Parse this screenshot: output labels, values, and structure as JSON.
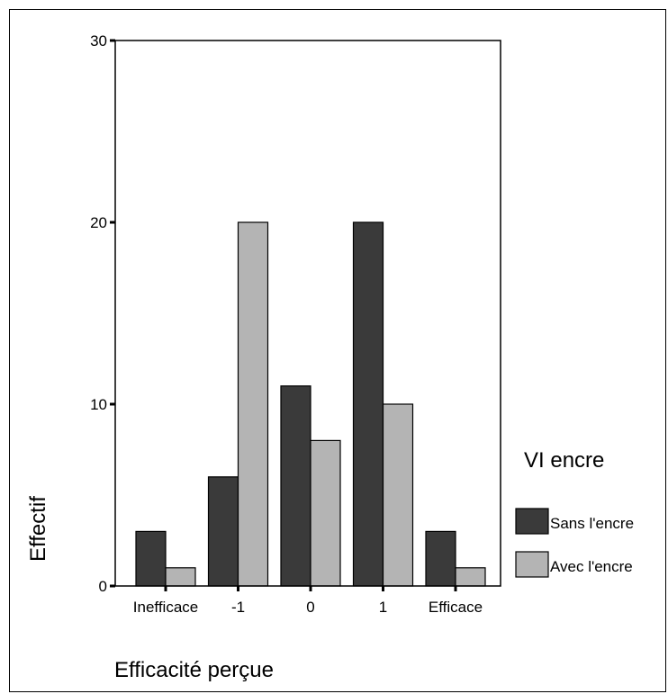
{
  "chart_data": {
    "type": "bar",
    "categories": [
      "Inefficace",
      "-1",
      "0",
      "1",
      "Efficace"
    ],
    "series": [
      {
        "name": "Sans l'encre",
        "values": [
          3,
          6,
          11,
          20,
          3
        ],
        "color": "#3a3a3a"
      },
      {
        "name": "Avec l'encre",
        "values": [
          1,
          20,
          8,
          10,
          1
        ],
        "color": "#b4b4b4"
      }
    ],
    "xlabel": "Efficacité perçue",
    "ylabel": "Effectif",
    "ylim": [
      0,
      30
    ],
    "yticks": [
      0,
      10,
      20,
      30
    ],
    "grid": false,
    "legend": {
      "title": "VI encre",
      "position": "right"
    }
  }
}
